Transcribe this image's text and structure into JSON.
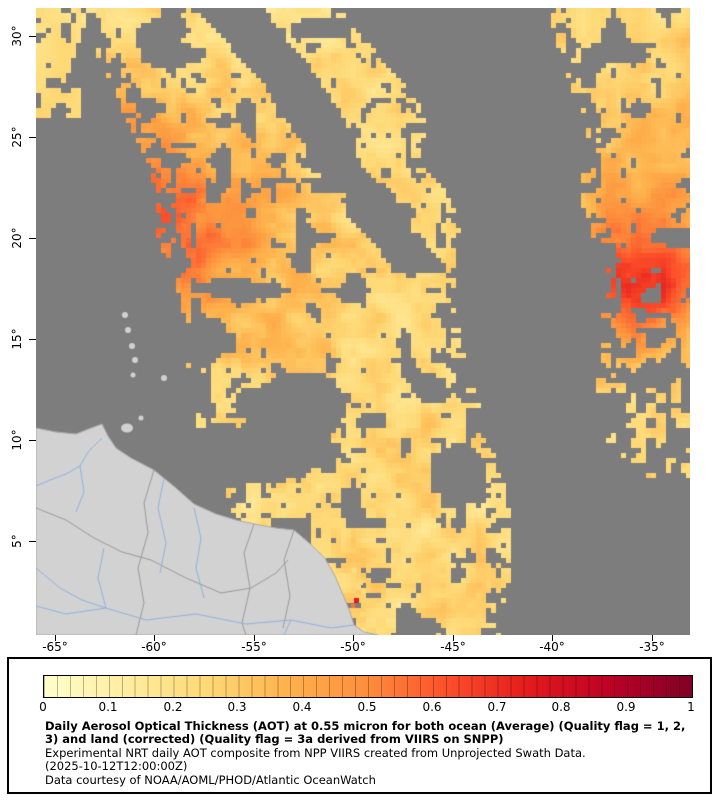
{
  "map": {
    "colors": {
      "no_data": "#7d7d7d",
      "land": "#d2d2d2",
      "land_edge": "#aaaaaa",
      "border": "#9a9a9a",
      "river": "#8fb2e0",
      "background": "#ffffff"
    }
  },
  "axes": {
    "lat_labels": [
      "30°",
      "25°",
      "20°",
      "15°",
      "10°",
      "5°"
    ],
    "lon_labels": [
      "-65°",
      "-60°",
      "-55°",
      "-50°",
      "-45°",
      "-40°",
      "-35°"
    ]
  },
  "colorbar": {
    "min": 0,
    "max": 1,
    "tick_labels": [
      "0",
      "0.1",
      "0.2",
      "0.3",
      "0.4",
      "0.5",
      "0.6",
      "0.7",
      "0.8",
      "0.9",
      "1"
    ],
    "stops": [
      "#ffffcc",
      "#ffeda0",
      "#fed976",
      "#feb24c",
      "#fd8d3c",
      "#fc4e2a",
      "#e31a1c",
      "#bd0026",
      "#800026"
    ]
  },
  "caption": {
    "bold_line": "Daily Aerosol Optical Thickness (AOT) at 0.55 micron for both ocean (Average) (Quality flag = 1, 2, 3) and land (corrected) (Quality flag = 3a derived from VIIRS on SNPP)",
    "line2": "Experimental NRT daily AOT composite from NPP VIIRS created from Unprojected Swath Data.",
    "line3": "(2025-10-12T12:00:00Z)",
    "line4": "Data courtesy of NOAA/AOML/PHOD/Atlantic OceanWatch"
  }
}
